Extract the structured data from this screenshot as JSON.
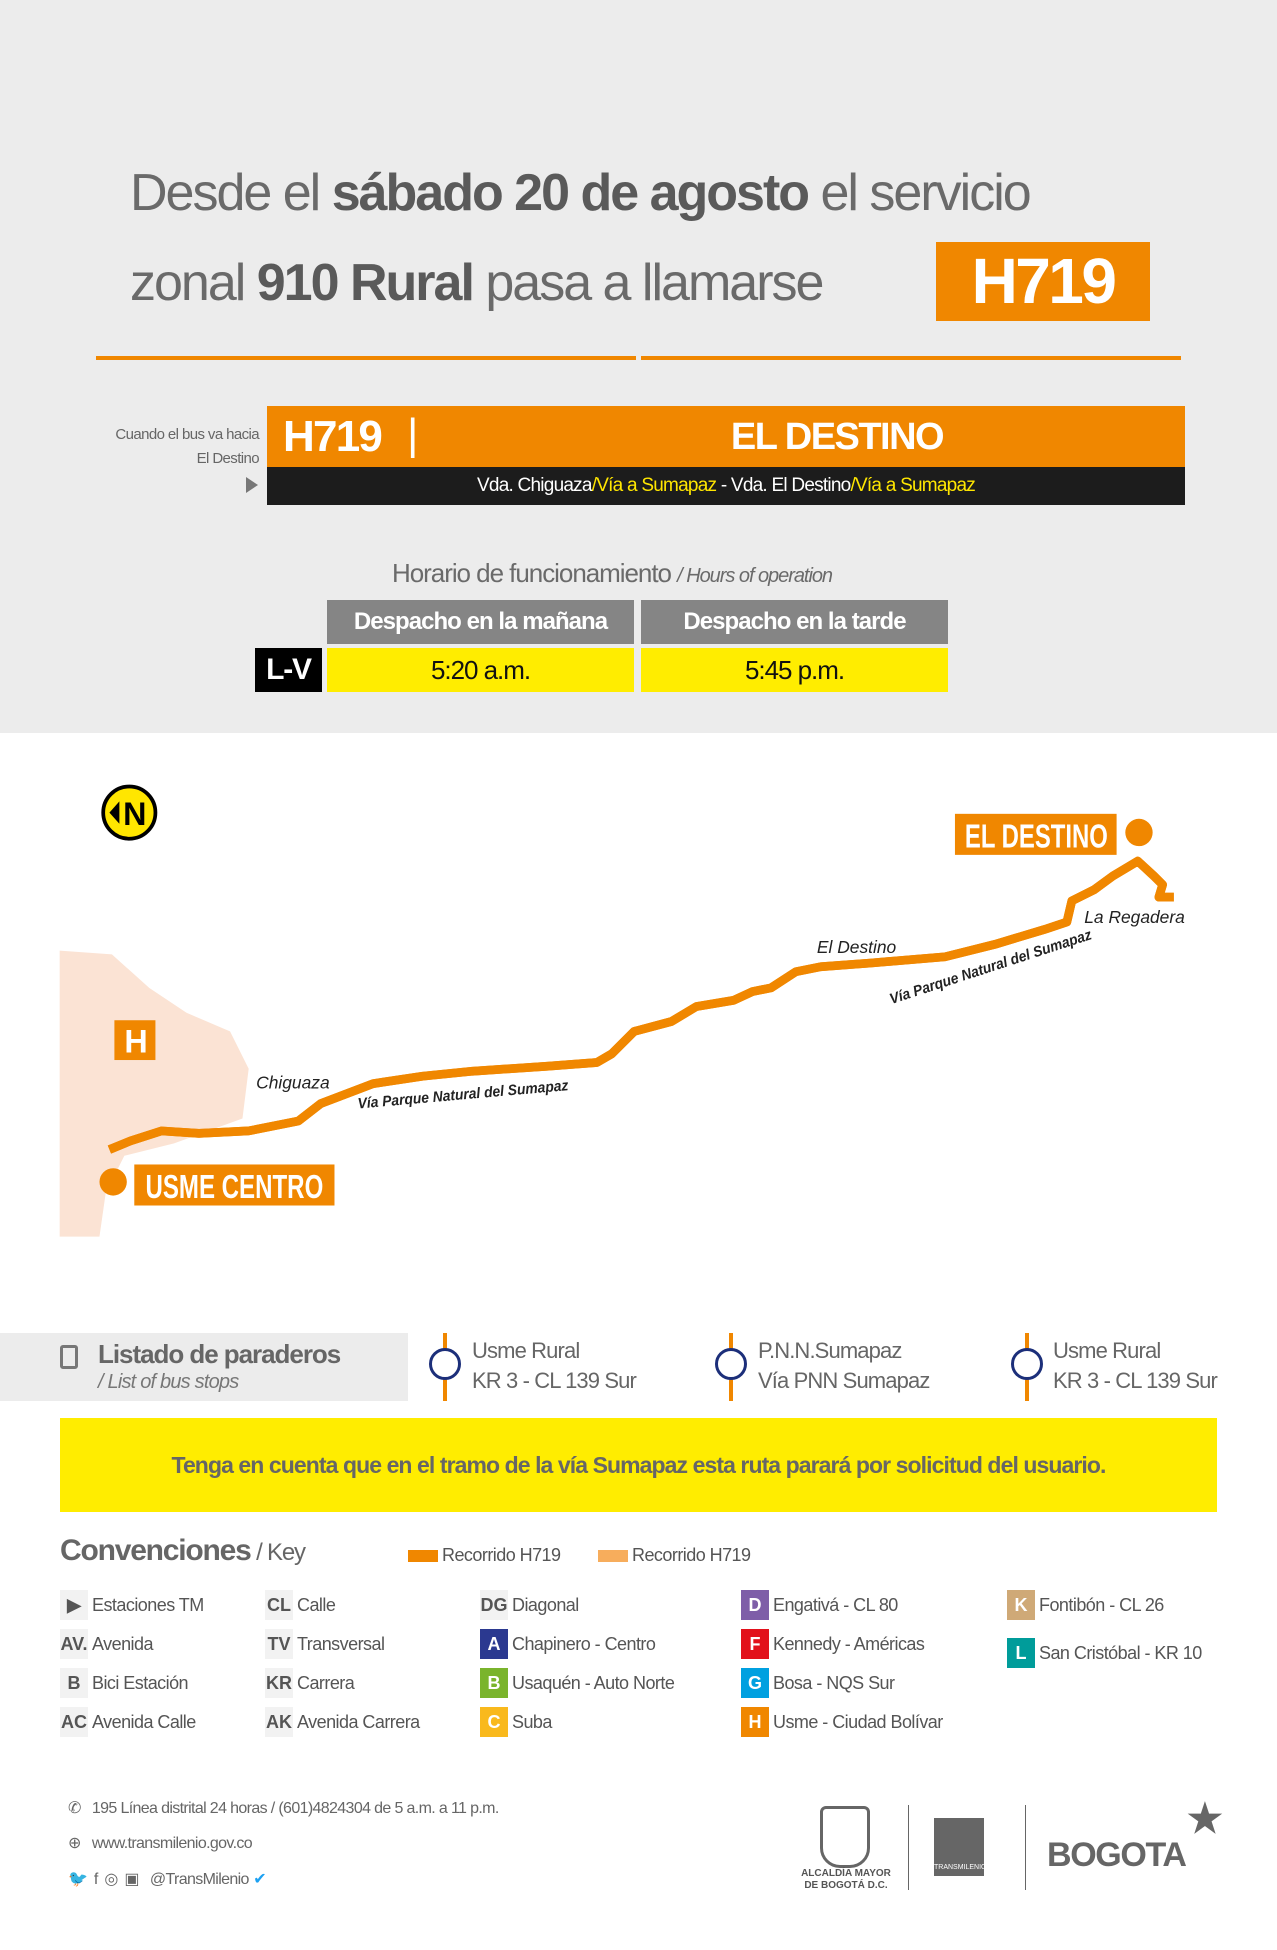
{
  "header": {
    "line1_pre": "Desde el ",
    "line1_bold": "sábado 20 de agosto",
    "line1_post": " el servicio",
    "line2_pre": "zonal ",
    "line2_bold": "910 Rural",
    "line2_post": " pasa a llamarse",
    "new_code": "H719"
  },
  "route": {
    "direction_label_1": "Cuando el bus va hacia",
    "direction_label_2": "El Destino",
    "code": "H719",
    "separator": "|",
    "destination": "EL DESTINO",
    "path_a": "Vda. Chiguaza",
    "path_b": "/Vía a Sumapaz",
    "path_sep": " - ",
    "path_c": "Vda. El Destino",
    "path_d": "/Vía a Sumapaz"
  },
  "schedule": {
    "title": "Horario de funcionamiento",
    "title_en": "/ Hours of operation",
    "col_morning": "Despacho en la mañana",
    "col_afternoon": "Despacho en la tarde",
    "rows": [
      {
        "days": "L-V",
        "morning": "5:20 a.m.",
        "afternoon": "5:45 p.m."
      }
    ]
  },
  "map": {
    "north": "N",
    "zone": "H",
    "start": "USME CENTRO",
    "end": "EL DESTINO",
    "labels": {
      "chiguaza": "Chiguaza",
      "via1": "Vía Parque Natural del Sumapaz",
      "el_destino": "El Destino",
      "via2": "Vía Parque Natural del Sumapaz",
      "regadera": "La Regadera"
    },
    "route_color": "#f08700",
    "route_light": "#f7ad5c"
  },
  "stops": {
    "title": "Listado de paraderos",
    "title_en": "/ List of bus stops",
    "items": [
      {
        "l1": "Usme Rural",
        "l2": "KR 3 - CL 139 Sur"
      },
      {
        "l1": "P.N.N.Sumapaz",
        "l2": "Vía PNN Sumapaz"
      },
      {
        "l1": "Usme Rural",
        "l2": "KR 3 - CL 139 Sur"
      }
    ]
  },
  "notice": "Tenga en cuenta que en el tramo de la vía Sumapaz esta ruta parará por solicitud del usuario.",
  "key": {
    "title": "Convenciones",
    "title_en": "/ Key",
    "route1": "Recorrido H719",
    "route2": "Recorrido H719",
    "cols": [
      [
        {
          "k": "▶",
          "t": "Estaciones TM"
        },
        {
          "k": "AV.",
          "t": "Avenida"
        },
        {
          "k": "B",
          "t": "Bici Estación"
        },
        {
          "k": "AC",
          "t": "Avenida Calle"
        }
      ],
      [
        {
          "k": "CL",
          "t": "Calle"
        },
        {
          "k": "TV",
          "t": "Transversal"
        },
        {
          "k": "KR",
          "t": "Carrera"
        },
        {
          "k": "AK",
          "t": "Avenida Carrera"
        }
      ],
      [
        {
          "k": "DG",
          "t": "Diagonal"
        },
        {
          "k": "A",
          "t": "Chapinero - Centro",
          "c": "#2b3990"
        },
        {
          "k": "B",
          "t": "Usaquén - Auto Norte",
          "c": "#7ab42c"
        },
        {
          "k": "C",
          "t": "Suba",
          "c": "#f9b91d"
        }
      ],
      [
        {
          "k": "D",
          "t": "Engativá - CL 80",
          "c": "#7e5ea8"
        },
        {
          "k": "F",
          "t": "Kennedy - Américas",
          "c": "#e2111b"
        },
        {
          "k": "G",
          "t": "Bosa - NQS Sur",
          "c": "#00a0e0"
        },
        {
          "k": "H",
          "t": "Usme - Ciudad Bolívar",
          "c": "#f08700"
        }
      ],
      [
        {
          "k": "K",
          "t": "Fontibón - CL 26",
          "c": "#cfa977"
        },
        {
          "k": "L",
          "t": "San Cristóbal - KR 10",
          "c": "#009c9a"
        }
      ]
    ]
  },
  "footer": {
    "phone": "195 Línea distrital 24 horas / (601)4824304 de 5 a.m. a 11 p.m.",
    "web": "www.transmilenio.gov.co",
    "social": "@TransMilenio",
    "logo1_l1": "ALCALDÍA MAYOR",
    "logo1_l2": "DE BOGOTÁ D.C.",
    "logo2": "TRANSMILENIO",
    "logo3": "BOGOTA"
  }
}
